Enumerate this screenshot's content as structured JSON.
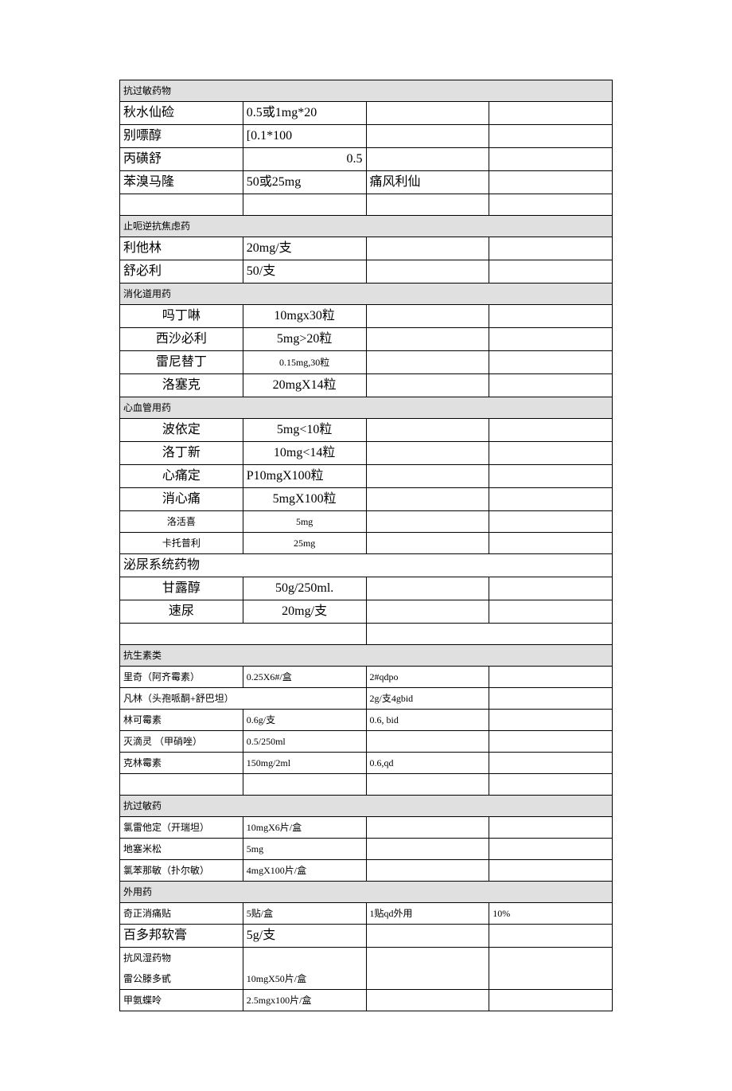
{
  "sections": [
    {
      "header": "抗过敏药物",
      "header_colspan": 4,
      "rows": [
        {
          "cells": [
            "秋水仙硷",
            "0.5或1mg*20",
            "",
            ""
          ],
          "fs": "lg"
        },
        {
          "cells": [
            "别嘌醇",
            "[0.1*100",
            "",
            ""
          ],
          "fs": "lg"
        },
        {
          "cells": [
            "丙磺舒",
            "0.5",
            "",
            ""
          ],
          "fs": "lg",
          "align1": "right"
        },
        {
          "cells": [
            "苯溴马隆",
            "50或25mg",
            "痛风利仙",
            ""
          ],
          "fs": "lg"
        },
        {
          "cells": [
            "",
            "",
            "",
            ""
          ],
          "fs": "md"
        }
      ]
    },
    {
      "header": "止呃逆抗焦虑药",
      "header_colspan": 4,
      "rows": [
        {
          "cells": [
            "利他林",
            "20mg/支",
            "",
            ""
          ],
          "fs": "lg"
        },
        {
          "cells": [
            "舒必利",
            "50/支",
            "",
            ""
          ],
          "fs": "lg"
        }
      ]
    },
    {
      "header": "消化道用药",
      "header_colspan": 4,
      "rows": [
        {
          "cells": [
            "吗丁啉",
            "10mgx30粒",
            "",
            ""
          ],
          "fs": "lg",
          "align0": "center",
          "align1": "center"
        },
        {
          "cells": [
            "西沙必利",
            "5mg>20粒",
            "",
            ""
          ],
          "fs": "lg",
          "align0": "center",
          "align1": "center"
        },
        {
          "cells": [
            "雷尼替丁",
            "0.15mg,30粒",
            "",
            ""
          ],
          "fs": "lg",
          "align0": "center",
          "align1": "center",
          "fs1": "sm"
        },
        {
          "cells": [
            "洛塞克",
            "20mgX14粒",
            "",
            ""
          ],
          "fs": "lg",
          "align0": "center",
          "align1": "center"
        }
      ]
    },
    {
      "header": "心血管用药",
      "header_colspan": 4,
      "rows": [
        {
          "cells": [
            "波依定",
            "5mg<10粒",
            "",
            ""
          ],
          "fs": "lg",
          "align0": "center",
          "align1": "center"
        },
        {
          "cells": [
            "洛丁新",
            "10mg<14粒",
            "",
            ""
          ],
          "fs": "lg",
          "align0": "center",
          "align1": "center"
        },
        {
          "cells": [
            "心痛定",
            "P10mgX100粒",
            "",
            ""
          ],
          "fs": "lg",
          "align0": "center",
          "align1": "left"
        },
        {
          "cells": [
            "消心痛",
            "5mgX100粒",
            "",
            ""
          ],
          "fs": "lg",
          "align0": "center",
          "align1": "center"
        },
        {
          "cells": [
            "洛活喜",
            "5mg",
            "",
            ""
          ],
          "fs": "sm",
          "align0": "center",
          "align1": "center"
        },
        {
          "cells": [
            "卡托普利",
            "25mg",
            "",
            ""
          ],
          "fs": "sm",
          "align0": "center",
          "align1": "center"
        }
      ]
    },
    {
      "header": "泌尿系统药物",
      "header_colspan": 4,
      "header_fs": "lg",
      "header_nobg": true,
      "rows": [
        {
          "cells": [
            "甘露醇",
            "50g/250ml.",
            "",
            ""
          ],
          "fs": "lg",
          "align0": "center",
          "align1": "center"
        },
        {
          "cells": [
            "速尿",
            "20mg/支",
            "",
            ""
          ],
          "fs": "lg",
          "align0": "center",
          "align1": "center"
        },
        {
          "cells": [
            "",
            "",
            "",
            ""
          ],
          "fs": "md",
          "twocol": true
        }
      ]
    },
    {
      "header": "抗生素类",
      "header_colspan": 4,
      "rows": [
        {
          "cells": [
            "里奇（阿齐霉素）",
            "0.25X6#/盒",
            "2#qdpo",
            ""
          ],
          "fs": "sm"
        },
        {
          "cells": [
            "凡林（头孢哌酮+舒巴坦）",
            "",
            "2g/支4gbid",
            ""
          ],
          "fs": "sm",
          "merge01": true
        },
        {
          "cells": [
            "林可霉素",
            "0.6g/支",
            "0.6, bid",
            ""
          ],
          "fs": "sm"
        },
        {
          "cells": [
            "灭滴灵 （甲硝唑）",
            "0.5/250ml",
            "",
            ""
          ],
          "fs": "sm"
        },
        {
          "cells": [
            "克林霉素",
            "150mg/2ml",
            "0.6,qd",
            ""
          ],
          "fs": "sm"
        },
        {
          "cells": [
            "",
            "",
            "",
            ""
          ],
          "fs": "sm"
        }
      ]
    },
    {
      "header": "抗过敏药",
      "header_colspan": 4,
      "rows": [
        {
          "cells": [
            "氯雷他定（开瑞坦）",
            "10mgX6片/盒",
            "",
            ""
          ],
          "fs": "sm"
        },
        {
          "cells": [
            "地塞米松",
            "5mg",
            "",
            ""
          ],
          "fs": "sm"
        },
        {
          "cells": [
            "氯苯那敏（扑尔敏）",
            "4mgX100片/盒",
            "",
            ""
          ],
          "fs": "sm"
        }
      ]
    },
    {
      "header": "外用药",
      "header_colspan": 4,
      "rows": [
        {
          "cells": [
            "奇正消痛贴",
            "5贴/盒",
            "1贴qd外用",
            "10%"
          ],
          "fs": "sm"
        },
        {
          "cells": [
            "百多邦软膏",
            "5g/支",
            "",
            ""
          ],
          "fs": "lg"
        }
      ]
    },
    {
      "header": "抗风湿药物",
      "header_colspan": 1,
      "header_nobg": true,
      "header_extra_row": {
        "cells": [
          "雷公滕多甙",
          "10mgX50片/盒",
          "",
          ""
        ],
        "fs": "sm"
      },
      "rows": [
        {
          "cells": [
            "甲氨蝶呤",
            "2.5mgx100片/盒",
            "",
            ""
          ],
          "fs": "sm",
          "open_bottom": true
        }
      ]
    }
  ],
  "colors": {
    "border": "#000000",
    "header_bg": "#e0e0e0",
    "page_bg": "#ffffff",
    "text": "#000000"
  },
  "col_widths_pct": [
    22,
    22,
    30,
    26
  ]
}
